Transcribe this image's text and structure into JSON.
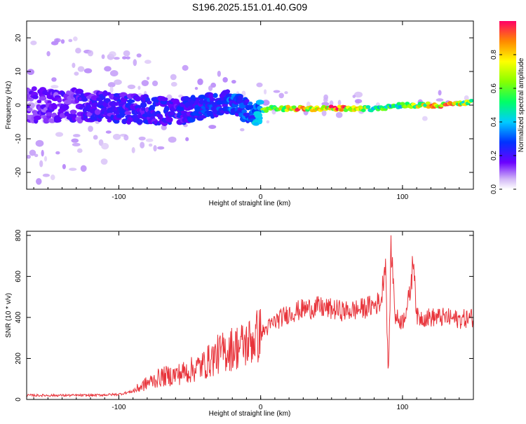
{
  "title": "S196.2025.151.01.40.G09",
  "chart_data": [
    {
      "type": "heatmap",
      "xlabel": "Height of straight line (km)",
      "ylabel": "Frequency (Hz)",
      "xlim": [
        -165,
        150
      ],
      "ylim": [
        -25,
        25
      ],
      "x_ticks": [
        -100,
        0,
        100
      ],
      "y_ticks": [
        -20,
        -10,
        0,
        10,
        20
      ],
      "colorbar": {
        "label": "Normalized spectral amplitude",
        "range": [
          0,
          1
        ],
        "ticks": [
          0.0,
          0.2,
          0.4,
          0.6,
          0.8
        ],
        "tick_labels": [
          "0.0",
          "0.2",
          "0.4",
          "0.6",
          "0.8"
        ]
      },
      "description_points": [
        {
          "x": -165,
          "freq": 0,
          "amp": 0.15
        },
        {
          "x": -130,
          "freq": 0,
          "amp": 0.18
        },
        {
          "x": -100,
          "freq": -1,
          "amp": 0.22
        },
        {
          "x": -60,
          "freq": -2,
          "amp": 0.22
        },
        {
          "x": -20,
          "freq": 1,
          "amp": 0.3
        },
        {
          "x": -5,
          "freq": -3,
          "amp": 0.3
        },
        {
          "x": 5,
          "freq": -1,
          "amp": 0.7
        },
        {
          "x": 30,
          "freq": -1,
          "amp": 0.85
        },
        {
          "x": 60,
          "freq": -1,
          "amp": 0.9
        },
        {
          "x": 80,
          "freq": -1,
          "amp": 0.5
        },
        {
          "x": 100,
          "freq": 0,
          "amp": 0.6
        },
        {
          "x": 130,
          "freq": 0,
          "amp": 0.9
        },
        {
          "x": 150,
          "freq": 1,
          "amp": 0.6
        }
      ]
    },
    {
      "type": "line",
      "xlabel": "Height of straight line (km)",
      "ylabel": "SNR (10 * v/v)",
      "xlim": [
        -165,
        150
      ],
      "ylim": [
        0,
        820
      ],
      "x_ticks": [
        -100,
        0,
        100
      ],
      "y_ticks": [
        0,
        200,
        400,
        600,
        800
      ],
      "series_color": "#e8333a",
      "x": [
        -165,
        -140,
        -120,
        -100,
        -90,
        -80,
        -70,
        -60,
        -50,
        -40,
        -30,
        -20,
        -10,
        0,
        10,
        20,
        30,
        40,
        50,
        60,
        70,
        75,
        80,
        85,
        88,
        90,
        92,
        95,
        100,
        105,
        108,
        110,
        120,
        130,
        140,
        150
      ],
      "y": [
        20,
        20,
        20,
        25,
        40,
        80,
        110,
        120,
        140,
        170,
        220,
        250,
        270,
        320,
        380,
        420,
        440,
        450,
        440,
        430,
        440,
        450,
        460,
        480,
        700,
        100,
        750,
        400,
        380,
        500,
        700,
        400,
        400,
        400,
        390,
        400
      ]
    }
  ]
}
